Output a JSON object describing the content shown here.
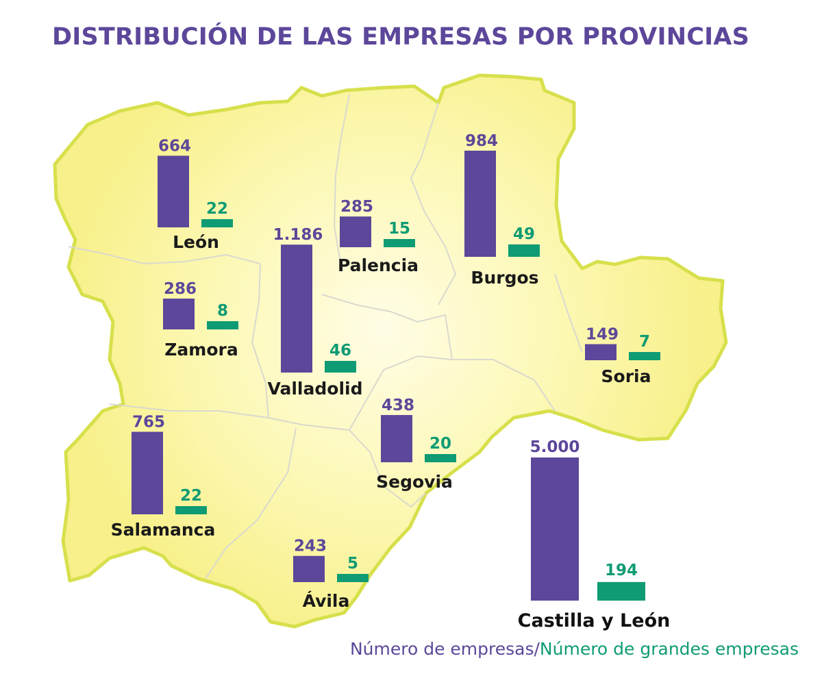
{
  "title": "DISTRIBUCIÓN DE LAS EMPRESAS POR PROVINCIAS",
  "colors": {
    "title": "#5c479a",
    "companies": "#5c479a",
    "large": "#0f9b74",
    "map_fill": "#fbf59a",
    "map_center": "#fffde6",
    "map_border": "#d7e04c",
    "province_line": "#d9d9cf"
  },
  "legend": {
    "companies": "Número de empresas",
    "separator": "/",
    "large": "Número de grandes empresas"
  },
  "chart_data": {
    "type": "bar",
    "title": "DISTRIBUCIÓN DE LAS EMPRESAS POR PROVINCIAS",
    "series": [
      {
        "name": "Número de empresas",
        "key": "companies"
      },
      {
        "name": "Número de grandes empresas",
        "key": "large"
      }
    ],
    "categories": [
      "León",
      "Palencia",
      "Burgos",
      "Zamora",
      "Valladolid",
      "Soria",
      "Salamanca",
      "Segovia",
      "Ávila"
    ],
    "provinces": [
      {
        "name": "León",
        "companies": 664,
        "companies_label": "664",
        "large": 22,
        "large_label": "22"
      },
      {
        "name": "Palencia",
        "companies": 285,
        "companies_label": "285",
        "large": 15,
        "large_label": "15"
      },
      {
        "name": "Burgos",
        "companies": 984,
        "companies_label": "984",
        "large": 49,
        "large_label": "49"
      },
      {
        "name": "Zamora",
        "companies": 286,
        "companies_label": "286",
        "large": 8,
        "large_label": "8"
      },
      {
        "name": "Valladolid",
        "companies": 1186,
        "companies_label": "1.186",
        "large": 46,
        "large_label": "46"
      },
      {
        "name": "Soria",
        "companies": 149,
        "companies_label": "149",
        "large": 7,
        "large_label": "7"
      },
      {
        "name": "Salamanca",
        "companies": 765,
        "companies_label": "765",
        "large": 22,
        "large_label": "22"
      },
      {
        "name": "Segovia",
        "companies": 438,
        "companies_label": "438",
        "large": 20,
        "large_label": "20"
      },
      {
        "name": "Ávila",
        "companies": 243,
        "companies_label": "243",
        "large": 5,
        "large_label": "5"
      }
    ],
    "total": {
      "name": "Castilla y León",
      "companies": 5000,
      "companies_label": "5.000",
      "large": 194,
      "large_label": "194"
    }
  }
}
